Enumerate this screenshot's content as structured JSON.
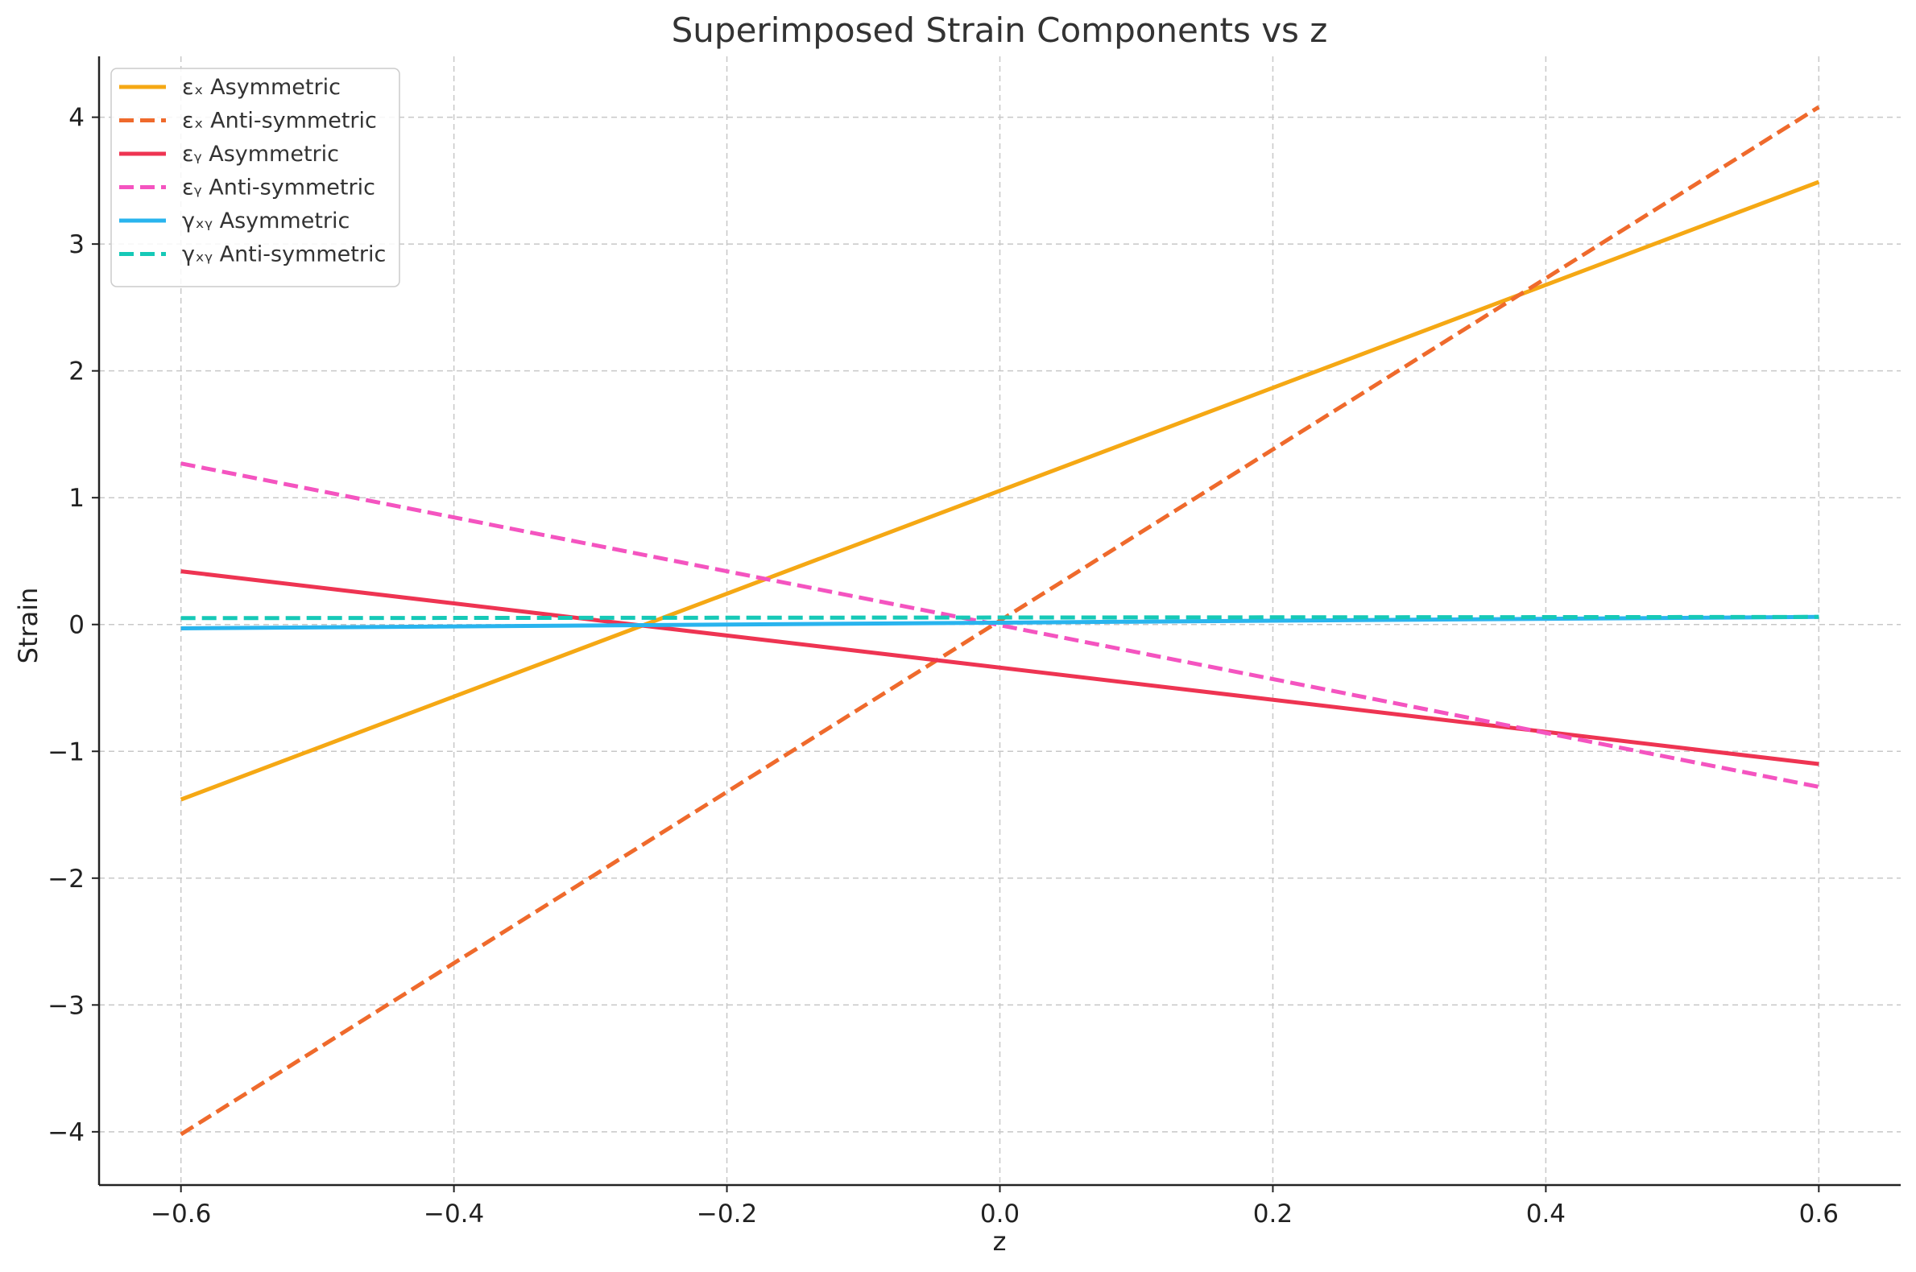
{
  "chart_data": {
    "type": "line",
    "title": "Superimposed Strain Components vs z",
    "xlabel": "z",
    "ylabel": "Strain",
    "xlim": [
      -0.66,
      0.66
    ],
    "ylim": [
      -4.42,
      4.48
    ],
    "xticks": [
      -0.6,
      -0.4,
      -0.2,
      0.0,
      0.2,
      0.4,
      0.6
    ],
    "xtick_labels": [
      "−0.6",
      "−0.4",
      "−0.2",
      "0.0",
      "0.2",
      "0.4",
      "0.6"
    ],
    "yticks": [
      -4,
      -3,
      -2,
      -1,
      0,
      1,
      2,
      3,
      4
    ],
    "ytick_labels": [
      "−4",
      "−3",
      "−2",
      "−1",
      "0",
      "1",
      "2",
      "3",
      "4"
    ],
    "grid": true,
    "legend_position": "top-left",
    "series": [
      {
        "name": "εₓ Asymmetric",
        "color": "#f5a814",
        "dash": "solid",
        "x": [
          -0.6,
          0.6
        ],
        "y": [
          -1.38,
          3.49
        ]
      },
      {
        "name": "εₓ Anti-symmetric",
        "color": "#ef6a2c",
        "dash": "dashed",
        "x": [
          -0.6,
          0.6
        ],
        "y": [
          -4.02,
          4.08
        ]
      },
      {
        "name": "εᵧ Asymmetric",
        "color": "#ee3452",
        "dash": "solid",
        "x": [
          -0.6,
          0.6
        ],
        "y": [
          0.42,
          -1.1
        ]
      },
      {
        "name": "εᵧ Anti-symmetric",
        "color": "#f454c0",
        "dash": "dashed",
        "x": [
          -0.6,
          0.6
        ],
        "y": [
          1.27,
          -1.28
        ]
      },
      {
        "name": "γₓᵧ Asymmetric",
        "color": "#29b4ee",
        "dash": "solid",
        "x": [
          -0.6,
          0.6
        ],
        "y": [
          -0.03,
          0.06
        ]
      },
      {
        "name": "γₓᵧ Anti-symmetric",
        "color": "#16c9b7",
        "dash": "dashed",
        "x": [
          -0.6,
          0.6
        ],
        "y": [
          0.05,
          0.06
        ]
      }
    ]
  }
}
